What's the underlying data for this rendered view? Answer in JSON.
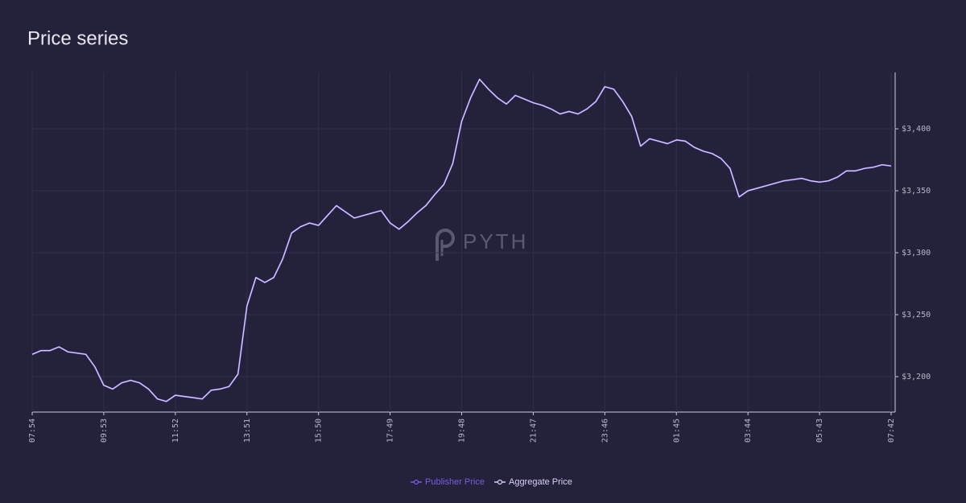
{
  "chart_data": {
    "type": "line",
    "title": "Price series",
    "watermark": "PYTH",
    "categories": [
      "07:54",
      null,
      null,
      null,
      null,
      null,
      null,
      null,
      "09:53",
      null,
      null,
      null,
      null,
      null,
      null,
      null,
      "11:52",
      null,
      null,
      null,
      null,
      null,
      null,
      null,
      "13:51",
      null,
      null,
      null,
      null,
      null,
      null,
      null,
      "15:50",
      null,
      null,
      null,
      null,
      null,
      null,
      null,
      "17:49",
      null,
      null,
      null,
      null,
      null,
      null,
      null,
      "19:48",
      null,
      null,
      null,
      null,
      null,
      null,
      null,
      "21:47",
      null,
      null,
      null,
      null,
      null,
      null,
      null,
      "23:46",
      null,
      null,
      null,
      null,
      null,
      null,
      null,
      "01:45",
      null,
      null,
      null,
      null,
      null,
      null,
      null,
      "03:44",
      null,
      null,
      null,
      null,
      null,
      null,
      null,
      "05:43",
      null,
      null,
      null,
      null,
      null,
      null,
      null,
      "07:42"
    ],
    "series": [
      {
        "name": "Publisher Price",
        "color": "#7b5ce0",
        "values": [
          3218,
          3221,
          3221,
          3224,
          3220,
          3219,
          3218,
          3208,
          3193,
          3190,
          3195,
          3197,
          3195,
          3190,
          3182,
          3180,
          3185,
          3184,
          3183,
          3182,
          3189,
          3190,
          3192,
          3202,
          3257,
          3280,
          3276,
          3280,
          3295,
          3316,
          3321,
          3324,
          3322,
          3330,
          3338,
          3333,
          3328,
          3330,
          3332,
          3334,
          3324,
          3319,
          3325,
          3332,
          3338,
          3347,
          3355,
          3372,
          3406,
          3425,
          3440,
          3432,
          3425,
          3420,
          3427,
          3424,
          3421,
          3419,
          3416,
          3412,
          3414,
          3412,
          3416,
          3422,
          3434,
          3432,
          3422,
          3410,
          3386,
          3392,
          3390,
          3388,
          3391,
          3390,
          3385,
          3382,
          3380,
          3376,
          3368,
          3345,
          3350,
          3352,
          3354,
          3356,
          3358,
          3359,
          3360,
          3358,
          3357,
          3358,
          3361,
          3366,
          3366,
          3368,
          3369,
          3371,
          3370
        ]
      },
      {
        "name": "Aggregate Price",
        "color": "#d9d0f7",
        "values": [
          3218,
          3221,
          3221,
          3224,
          3220,
          3219,
          3218,
          3208,
          3193,
          3190,
          3195,
          3197,
          3195,
          3190,
          3182,
          3180,
          3185,
          3184,
          3183,
          3182,
          3189,
          3190,
          3192,
          3202,
          3257,
          3280,
          3276,
          3280,
          3295,
          3316,
          3321,
          3324,
          3322,
          3330,
          3338,
          3333,
          3328,
          3330,
          3332,
          3334,
          3324,
          3319,
          3325,
          3332,
          3338,
          3347,
          3355,
          3372,
          3406,
          3425,
          3440,
          3432,
          3425,
          3420,
          3427,
          3424,
          3421,
          3419,
          3416,
          3412,
          3414,
          3412,
          3416,
          3422,
          3434,
          3432,
          3422,
          3410,
          3386,
          3392,
          3390,
          3388,
          3391,
          3390,
          3385,
          3382,
          3380,
          3376,
          3368,
          3345,
          3350,
          3352,
          3354,
          3356,
          3358,
          3359,
          3360,
          3358,
          3357,
          3358,
          3361,
          3366,
          3366,
          3368,
          3369,
          3371,
          3370
        ]
      }
    ],
    "ylim": [
      3171.4,
      3445.5
    ],
    "yticks": [
      {
        "value": 3200,
        "label": "$3,200"
      },
      {
        "value": 3250,
        "label": "$3,250"
      },
      {
        "value": 3300,
        "label": "$3,300"
      },
      {
        "value": 3350,
        "label": "$3,350"
      },
      {
        "value": 3400,
        "label": "$3,400"
      }
    ],
    "grid": true,
    "legend": "bottom"
  }
}
